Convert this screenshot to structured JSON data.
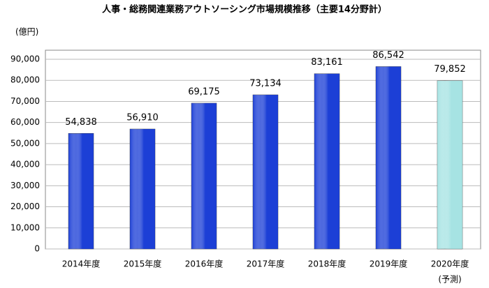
{
  "chart_data": {
    "type": "bar",
    "title": "人事・総務関連業務アウトソーシング市場規模推移（主要14分野計）",
    "y_unit": "(億円)",
    "categories": [
      "2014年度",
      "2015年度",
      "2016年度",
      "2017年度",
      "2018年度",
      "2019年度",
      "2020年度"
    ],
    "category_notes": [
      null,
      null,
      null,
      null,
      null,
      null,
      "(予測)"
    ],
    "values": [
      54838,
      56910,
      69175,
      73134,
      83161,
      86542,
      79852
    ],
    "value_labels": [
      "54,838",
      "56,910",
      "69,175",
      "73,134",
      "83,161",
      "86,542",
      "79,852"
    ],
    "colors": [
      "#1c3fd6",
      "#1c3fd6",
      "#1c3fd6",
      "#1c3fd6",
      "#1c3fd6",
      "#1c3fd6",
      "#a6e3e3"
    ],
    "ylim": [
      0,
      90000
    ],
    "yticks": [
      0,
      {
        "value": 10000,
        "label": "10,000"
      },
      {
        "value": 20000,
        "label": "20,000"
      },
      {
        "value": 30000,
        "label": "30,000"
      },
      {
        "value": 40000,
        "label": "40,000"
      },
      {
        "value": 50000,
        "label": "50,000"
      },
      {
        "value": 60000,
        "label": "60,000"
      },
      {
        "value": 70000,
        "label": "70,000"
      },
      {
        "value": 80000,
        "label": "80,000"
      },
      {
        "value": 90000,
        "label": "90,000"
      }
    ],
    "grid": true
  }
}
